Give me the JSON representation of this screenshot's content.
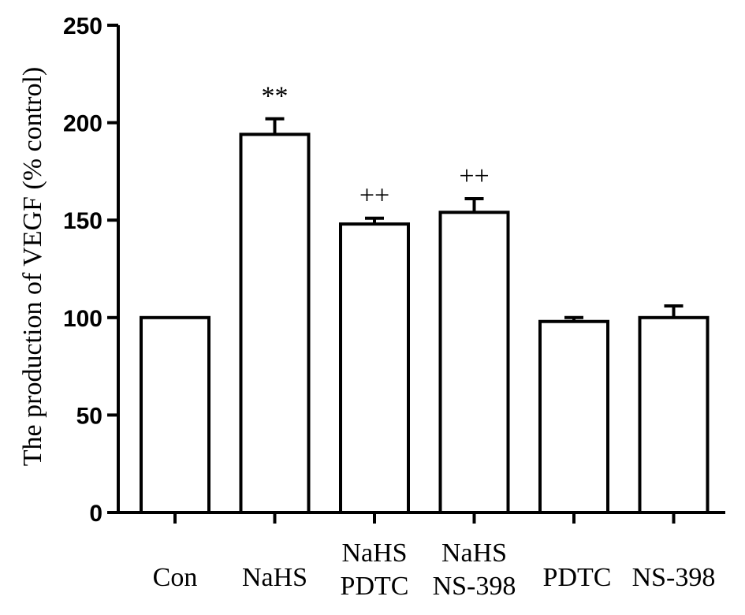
{
  "chart_data": {
    "type": "bar",
    "ylabel": "The production of VEGF (% control)",
    "ylim": [
      0,
      250
    ],
    "yticks": [
      "0",
      "50",
      "100",
      "150",
      "200",
      "250"
    ],
    "yticks_values": [
      0,
      50,
      100,
      150,
      200,
      250
    ],
    "categories": [
      {
        "lines": [
          "Con"
        ]
      },
      {
        "lines": [
          "NaHS"
        ]
      },
      {
        "lines": [
          "NaHS",
          "PDTC"
        ]
      },
      {
        "lines": [
          "NaHS",
          "NS-398"
        ]
      },
      {
        "lines": [
          "PDTC"
        ]
      },
      {
        "lines": [
          "NS-398"
        ]
      }
    ],
    "values": [
      100,
      194,
      148,
      154,
      98,
      100
    ],
    "errors": [
      0,
      8,
      3,
      7,
      2,
      6
    ],
    "annotations": [
      "",
      "**",
      "++",
      "++",
      "",
      ""
    ],
    "bar_fill": "#ffffff",
    "bar_stroke": "#000000",
    "grid": false,
    "legend": "none"
  }
}
